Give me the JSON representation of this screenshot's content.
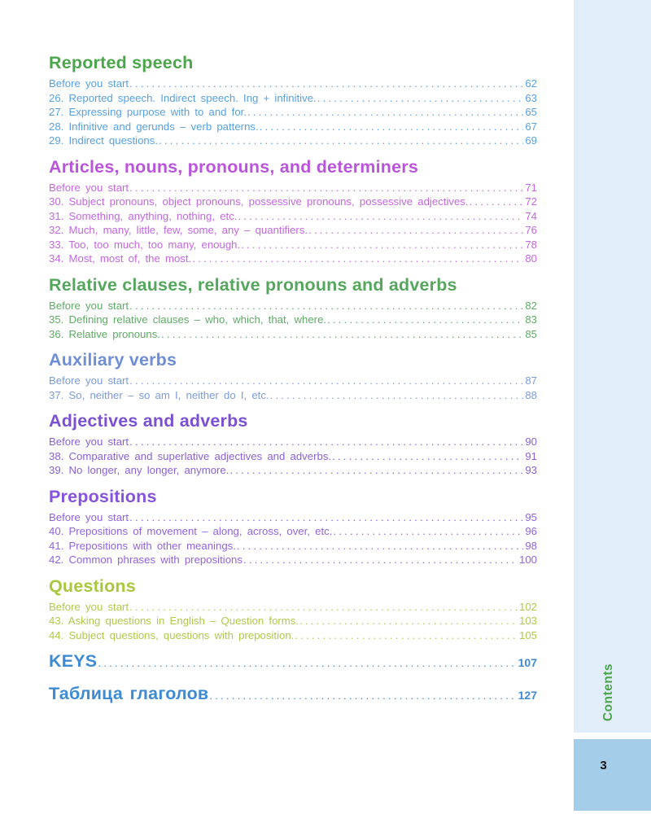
{
  "page": {
    "sidebar_label": "Contents",
    "page_number": "3",
    "colors": {
      "sidebar_strip": "#E1EDF8",
      "page_number_box": "#A3CDE9",
      "sidebar_label": "#4AA44A",
      "page_number_text": "#151515",
      "major_entry": "#3E8BD3"
    }
  },
  "sections": [
    {
      "title": "Reported speech",
      "heading_color": "#4CA64C",
      "entry_color": "#56A1E3",
      "entries": [
        {
          "label": "Before you start",
          "page": "62"
        },
        {
          "label": "26. Reported speech. Indirect speech. Ing + infinitive.",
          "page": "63"
        },
        {
          "label": "27. Expressing purpose with to and for.",
          "page": "65"
        },
        {
          "label": "28. Infinitive and gerunds – verb patterns.",
          "page": "67"
        },
        {
          "label": "29. Indirect questions.",
          "page": "69"
        }
      ]
    },
    {
      "title": "Articles, nouns, pronouns, and determiners",
      "heading_color": "#BB54DC",
      "entry_color": "#C467E1",
      "entries": [
        {
          "label": "Before you start",
          "page": "71"
        },
        {
          "label": "30. Subject pronouns, object pronouns, possessive pronouns, possessive adjectives.",
          "page": "72"
        },
        {
          "label": "31. Something, anything, nothing, etc.",
          "page": "74"
        },
        {
          "label": "32. Much, many, little, few, some, any – quantifiers.",
          "page": "76"
        },
        {
          "label": "33. Too, too much, too many, enough.",
          "page": "78"
        },
        {
          "label": "34. Most, most of, the most.",
          "page": "80"
        }
      ]
    },
    {
      "title": "Relative clauses, relative pronouns and adverbs",
      "heading_color": "#55A75D",
      "entry_color": "#5EAB65",
      "entries": [
        {
          "label": "Before you start",
          "page": "82"
        },
        {
          "label": "35. Defining relative clauses – who, which, that, where.",
          "page": "83"
        },
        {
          "label": "36. Relative pronouns.",
          "page": "85"
        }
      ]
    },
    {
      "title": "Auxiliary verbs",
      "heading_color": "#6E8FD7",
      "entry_color": "#7C9BDC",
      "entries": [
        {
          "label": "Before you start",
          "page": "87"
        },
        {
          "label": "37. So, neither – so am I, neither do I, etc.",
          "page": "88"
        }
      ]
    },
    {
      "title": "Adjectives and adverbs",
      "heading_color": "#7C50D3",
      "entry_color": "#8A60DA",
      "entries": [
        {
          "label": "Before you start",
          "page": "90"
        },
        {
          "label": "38. Comparative and superlative adjectives and adverbs.",
          "page": "91"
        },
        {
          "label": "39. No longer, any longer, anymore.",
          "page": "93"
        }
      ]
    },
    {
      "title": "Prepositions",
      "heading_color": "#8553DC",
      "entry_color": "#9263E0",
      "entries": [
        {
          "label": "Before you start",
          "page": "95"
        },
        {
          "label": "40. Prepositions of movement – along, across, over, etc.",
          "page": "96"
        },
        {
          "label": "41. Prepositions with other meanings.",
          "page": "98"
        },
        {
          "label": "42. Common phrases with prepositions",
          "page": "100"
        }
      ]
    },
    {
      "title": "Questions",
      "heading_color": "#A9C73D",
      "entry_color": "#AFC94C",
      "entries": [
        {
          "label": "Before you start",
          "page": "102"
        },
        {
          "label": "43. Asking questions in English – Question forms.",
          "page": "103"
        },
        {
          "label": "44. Subject questions, questions with preposition.",
          "page": "105"
        }
      ]
    }
  ],
  "major_entries": [
    {
      "label": "KEYS",
      "page": "107"
    },
    {
      "label": "Таблица глаголов",
      "page": "127"
    }
  ]
}
